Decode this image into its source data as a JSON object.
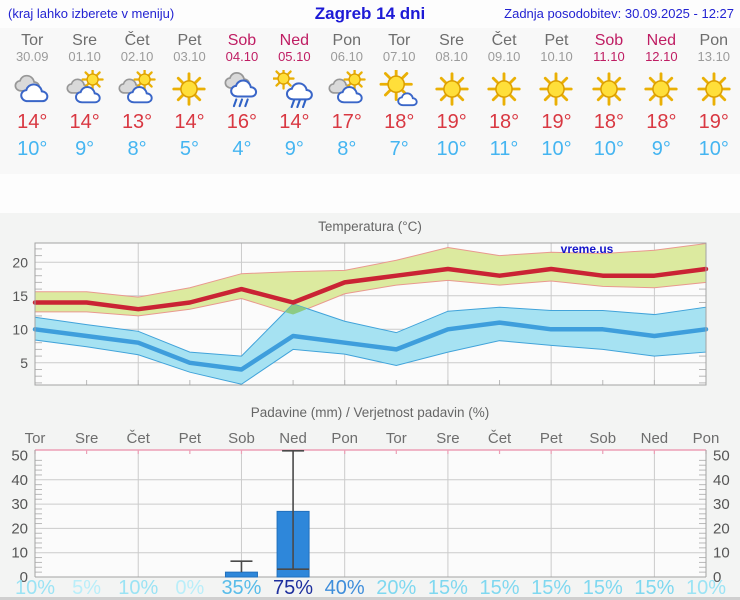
{
  "header": {
    "left": "(kraj lahko izberete v meniju)",
    "title": "Zagreb 14 dni",
    "right": "Zadnja posodobitev: 30.09.2025 - 12:27"
  },
  "colors": {
    "header_blue": "#1d1ad6",
    "weekend": "#bf1d63",
    "weekday": "#6d6d6d",
    "tmax_red": "#d93842",
    "tmin_blue": "#45b5f1",
    "max_band_fill": "#dcea9f",
    "max_band_edge": "#e9998f",
    "min_band_fill": "#a6e2f2",
    "min_band_edge": "#41a3da",
    "overlap_green": "#8ccb84",
    "max_line": "#ca2334",
    "min_line": "#3e9edc",
    "bar_blue": "#2e87da",
    "bar_edge": "#2070bd",
    "pink_axis": "#ec9fb6",
    "watermark_blue": "#1515cc",
    "probability_scale": [
      {
        "min": 60,
        "color": "#1d2f9e"
      },
      {
        "min": 40,
        "color": "#3f8edb"
      },
      {
        "min": 25,
        "color": "#58bce9"
      },
      {
        "min": 15,
        "color": "#7fd8f0"
      },
      {
        "min": 10,
        "color": "#9be3f4"
      },
      {
        "min": 0,
        "color": "#baeef9"
      }
    ]
  },
  "days": [
    {
      "name": "Tor",
      "date": "30.09",
      "weekend": false,
      "icon": "cloudy",
      "tmax": "14°",
      "tmin": "10°"
    },
    {
      "name": "Sre",
      "date": "01.10",
      "weekend": false,
      "icon": "partly",
      "tmax": "14°",
      "tmin": "9°"
    },
    {
      "name": "Čet",
      "date": "02.10",
      "weekend": false,
      "icon": "partly",
      "tmax": "13°",
      "tmin": "8°"
    },
    {
      "name": "Pet",
      "date": "03.10",
      "weekend": false,
      "icon": "sunny",
      "tmax": "14°",
      "tmin": "5°"
    },
    {
      "name": "Sob",
      "date": "04.10",
      "weekend": true,
      "icon": "rain",
      "tmax": "16°",
      "tmin": "4°"
    },
    {
      "name": "Ned",
      "date": "05.10",
      "weekend": true,
      "icon": "sunrain",
      "tmax": "14°",
      "tmin": "9°"
    },
    {
      "name": "Pon",
      "date": "06.10",
      "weekend": false,
      "icon": "partly",
      "tmax": "17°",
      "tmin": "8°"
    },
    {
      "name": "Tor",
      "date": "07.10",
      "weekend": false,
      "icon": "mostlysunny",
      "tmax": "18°",
      "tmin": "7°"
    },
    {
      "name": "Sre",
      "date": "08.10",
      "weekend": false,
      "icon": "sunny",
      "tmax": "19°",
      "tmin": "10°"
    },
    {
      "name": "Čet",
      "date": "09.10",
      "weekend": false,
      "icon": "sunny",
      "tmax": "18°",
      "tmin": "11°"
    },
    {
      "name": "Pet",
      "date": "10.10",
      "weekend": false,
      "icon": "sunny",
      "tmax": "19°",
      "tmin": "10°"
    },
    {
      "name": "Sob",
      "date": "11.10",
      "weekend": true,
      "icon": "sunny",
      "tmax": "18°",
      "tmin": "10°"
    },
    {
      "name": "Ned",
      "date": "12.10",
      "weekend": true,
      "icon": "sunny",
      "tmax": "18°",
      "tmin": "9°"
    },
    {
      "name": "Pon",
      "date": "13.10",
      "weekend": false,
      "icon": "sunny",
      "tmax": "19°",
      "tmin": "10°"
    }
  ],
  "chart_data": [
    {
      "type": "line",
      "title": "Temperatura (°C)",
      "watermark": "vreme.us",
      "ylim": [
        0,
        23
      ],
      "yticks": [
        5,
        10,
        15,
        20
      ],
      "grid": "on",
      "series": [
        {
          "name": "temp_max",
          "color": "#ca2334",
          "values": [
            14,
            14,
            13,
            14,
            16,
            14,
            17,
            18,
            19,
            18,
            19,
            18,
            18,
            19
          ]
        },
        {
          "name": "temp_min",
          "color": "#3e9edc",
          "values": [
            10,
            9,
            8,
            5,
            4,
            9,
            8,
            7,
            10,
            11,
            10,
            10,
            9,
            10
          ]
        },
        {
          "name": "temp_max_range_upper",
          "values": [
            15.6,
            15.6,
            14.8,
            16.2,
            18.3,
            18.6,
            18.8,
            20.3,
            22.2,
            21.0,
            21.5,
            21.3,
            21.8,
            22.8
          ]
        },
        {
          "name": "temp_max_range_lower",
          "values": [
            12.6,
            12.6,
            12.0,
            13.0,
            14.6,
            12.2,
            15.3,
            16.6,
            17.3,
            16.6,
            17.2,
            16.4,
            16.2,
            17.0
          ]
        },
        {
          "name": "temp_min_range_upper",
          "values": [
            11.8,
            10.7,
            9.7,
            6.6,
            6.0,
            13.8,
            11.2,
            9.5,
            12.7,
            13.3,
            12.8,
            12.8,
            12.2,
            13.3
          ]
        },
        {
          "name": "temp_min_range_lower",
          "values": [
            8.4,
            7.4,
            6.2,
            3.6,
            1.8,
            7.0,
            6.3,
            4.6,
            6.6,
            8.3,
            7.6,
            7.0,
            6.0,
            6.6
          ]
        }
      ]
    },
    {
      "type": "bar",
      "title": "Padavine (mm) / Verjetnost padavin (%)",
      "categories": [
        "Tor",
        "Sre",
        "Čet",
        "Pet",
        "Sob",
        "Ned",
        "Pon",
        "Tor",
        "Sre",
        "Čet",
        "Pet",
        "Sob",
        "Ned",
        "Pon"
      ],
      "weekend": [
        false,
        false,
        false,
        false,
        true,
        true,
        false,
        false,
        false,
        false,
        false,
        true,
        true,
        false
      ],
      "precip_mm": [
        0,
        0,
        0,
        0,
        2,
        27,
        0,
        0,
        0,
        0,
        0,
        0,
        0,
        0
      ],
      "probability_pct": [
        "10%",
        "5%",
        "10%",
        "0%",
        "35%",
        "75%",
        "40%",
        "20%",
        "15%",
        "15%",
        "15%",
        "15%",
        "15%",
        "10%"
      ],
      "whiskers": [
        {
          "day_index": 4,
          "from_mm": 2,
          "to_mm": 6.5,
          "median_mm": null
        },
        {
          "day_index": 5,
          "from_mm": 3.2,
          "to_mm": 52,
          "median_mm": 3.2
        }
      ],
      "ylim": [
        0,
        50
      ],
      "yticks": [
        0,
        10,
        20,
        30,
        40,
        50
      ],
      "grid": "on"
    }
  ]
}
